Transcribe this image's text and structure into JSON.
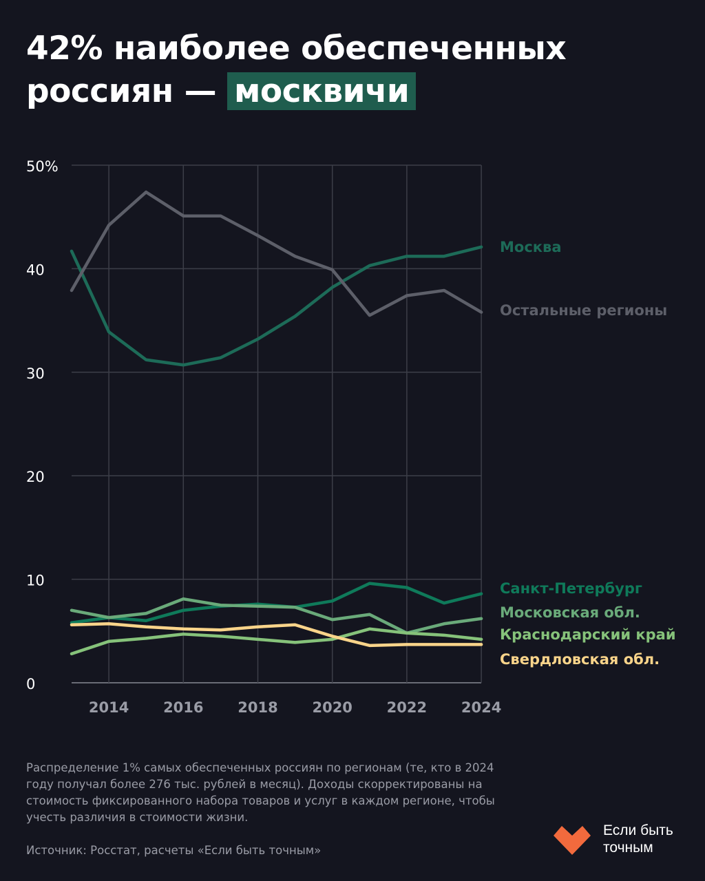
{
  "title": {
    "line1": "42% наиболее обеспеченных",
    "line2_prefix": "россиян — ",
    "highlight": "москвичи"
  },
  "chart_data": {
    "type": "line",
    "x": [
      2013,
      2014,
      2015,
      2016,
      2017,
      2018,
      2019,
      2020,
      2021,
      2022,
      2023,
      2024
    ],
    "xticks": [
      "2014",
      "2016",
      "2018",
      "2020",
      "2022",
      "2024"
    ],
    "yticks": [
      "50%",
      "40",
      "30",
      "20",
      "10",
      "0"
    ],
    "ylim": [
      0,
      50
    ],
    "grid": true,
    "series": [
      {
        "name": "Москва",
        "color": "#1d6b58",
        "values": [
          41.7,
          33.9,
          31.2,
          30.7,
          31.4,
          33.2,
          35.4,
          38.2,
          40.3,
          41.2,
          41.2,
          42.1
        ]
      },
      {
        "name": "Остальные регионы",
        "color": "#5d5f69",
        "values": [
          37.9,
          44.2,
          47.4,
          45.1,
          45.1,
          43.2,
          41.2,
          39.9,
          35.5,
          37.4,
          37.9,
          35.8
        ]
      },
      {
        "name": "Санкт-Петербург",
        "color": "#0f7a5a",
        "values": [
          5.8,
          6.3,
          6.0,
          7.0,
          7.4,
          7.6,
          7.3,
          7.9,
          9.6,
          9.2,
          7.7,
          8.6
        ]
      },
      {
        "name": "Московская обл.",
        "color": "#6aaa7a",
        "values": [
          7.0,
          6.3,
          6.7,
          8.1,
          7.5,
          7.4,
          7.3,
          6.1,
          6.6,
          4.8,
          5.7,
          6.2
        ]
      },
      {
        "name": "Краснодарский край",
        "color": "#86c27a",
        "values": [
          2.8,
          4.0,
          4.3,
          4.7,
          4.5,
          4.2,
          3.9,
          4.2,
          5.2,
          4.8,
          4.6,
          4.2
        ]
      },
      {
        "name": "Свердловская обл.",
        "color": "#f9d48a",
        "values": [
          5.6,
          5.7,
          5.4,
          5.2,
          5.1,
          5.4,
          5.6,
          4.5,
          3.6,
          3.7,
          3.7,
          3.7
        ]
      }
    ]
  },
  "note": "Распределение 1% самых обеспеченных россиян по регионам (те, кто в 2024 году получал более 276 тыс. рублей в месяц). Доходы скорректированы на стоимость фиксированного набора товаров и услуг в каждом регионе, чтобы учесть различия в стоимости жизни.",
  "source": "Источник: Росстат, расчеты «Если быть точным»",
  "logo": {
    "line1": "Если быть",
    "line2": "точным",
    "color": "#f26a3d"
  }
}
